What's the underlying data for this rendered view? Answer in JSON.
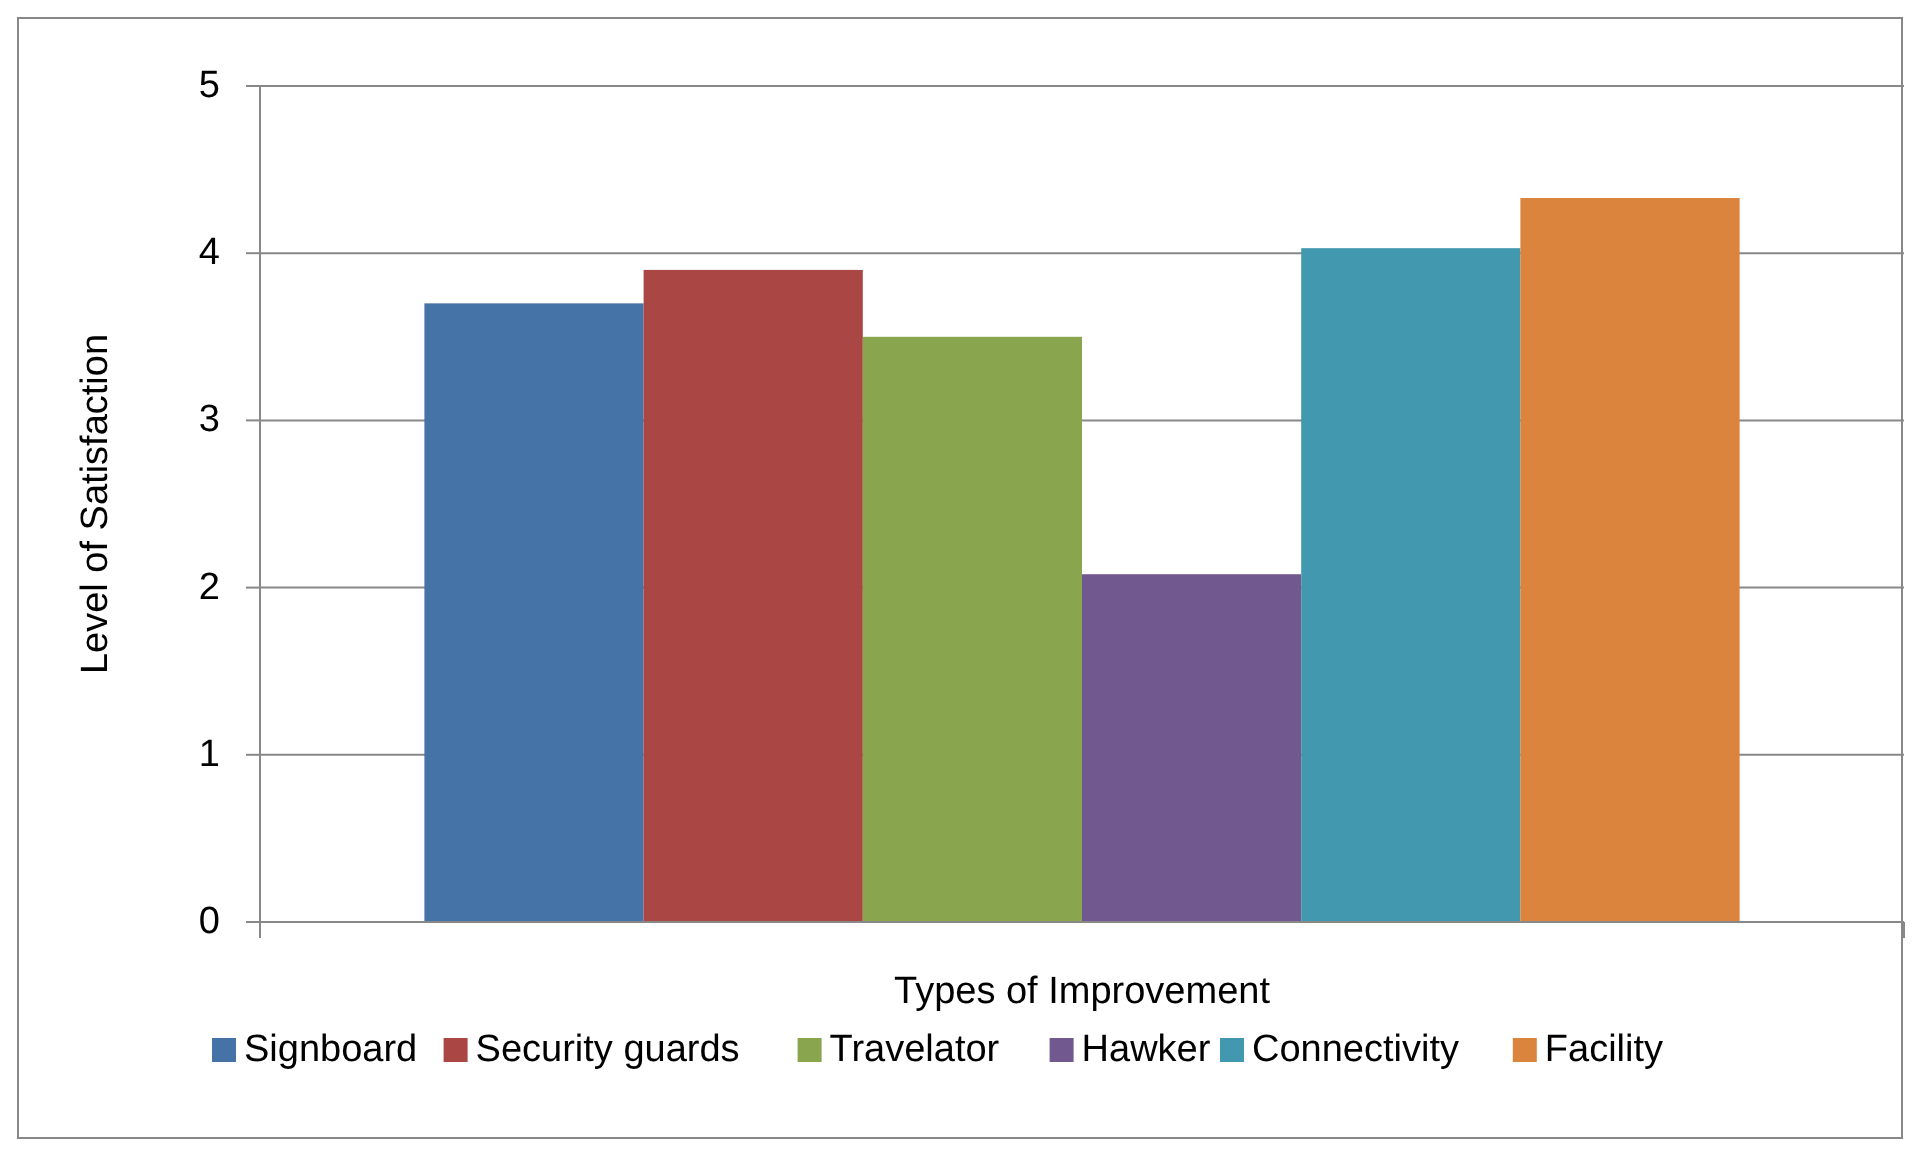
{
  "chart_data": {
    "type": "bar",
    "xlabel": "Types of Improvement",
    "ylabel": "Level of Satisfaction",
    "categories": [
      null
    ],
    "series": [
      {
        "name": "Signboard",
        "color": "#4572a7",
        "values": [
          3.7
        ]
      },
      {
        "name": "Security guards",
        "color": "#aa4643",
        "values": [
          3.9
        ]
      },
      {
        "name": "Travelator",
        "color": "#89a54e",
        "values": [
          3.5
        ]
      },
      {
        "name": "Hawker",
        "color": "#71588f",
        "values": [
          2.08
        ]
      },
      {
        "name": "Connectivity",
        "color": "#4198af",
        "values": [
          4.03
        ]
      },
      {
        "name": "Facility",
        "color": "#db843d",
        "values": [
          4.33
        ]
      }
    ],
    "ylim": [
      0,
      5
    ],
    "yticks": [
      0,
      1,
      2,
      3,
      4,
      5
    ],
    "grid": "y",
    "legend": "bottom"
  }
}
